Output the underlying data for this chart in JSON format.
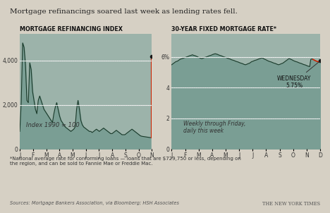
{
  "title": "Mortgage refinancings soared last week as lending rates fell.",
  "bg_color": "#d6d0c4",
  "chart_bg": "#9cb3aa",
  "left_title": "MORTGAGE REFINANCING INDEX",
  "right_title": "30-YEAR FIXED MORTGAGE RATE*",
  "left_label": "Index 1990 = 100",
  "right_annotation": "WEDNESDAY\n5.75%",
  "right_note": "Weekly through Friday,\ndaily this week",
  "footnote": "*National average rate for conforming loans — loans that are $729,750 or less, depending on\nthe region, and can be sold to Fannie Mae or Freddie Mac.",
  "sources": "Sources: Mortgage Bankers Association, via Bloomberg; HSH Associates",
  "nyt": "THE NEW YORK TIMES",
  "left_yticks": [
    0,
    2000,
    4000
  ],
  "left_ylim": [
    0,
    5200
  ],
  "right_yticks": [
    0,
    2,
    4,
    "6%"
  ],
  "right_ylim": [
    0,
    7.5
  ],
  "x_months_left": [
    "J",
    "F",
    "M",
    "A",
    "M",
    "J",
    "J",
    "A",
    "S",
    "O",
    "N"
  ],
  "x_months_right": [
    "J",
    "F",
    "M",
    "A",
    "M",
    "J",
    "J",
    "A",
    "S",
    "O",
    "N",
    "D"
  ],
  "line_color": "#1a3a2a",
  "fill_color": "#7a9e94",
  "red_color": "#cc2200",
  "grid_color": "#ffffff",
  "dot_color": "#1a1a1a",
  "left_data": [
    800,
    2100,
    4800,
    4600,
    3800,
    2200,
    2100,
    3900,
    3600,
    2600,
    2200,
    1800,
    1600,
    2200,
    2400,
    2200,
    2000,
    1800,
    1700,
    1600,
    1500,
    1400,
    1300,
    1200,
    1600,
    1900,
    2100,
    1800,
    1500,
    1300,
    1200,
    1100,
    1000,
    950,
    900,
    850,
    800,
    850,
    900,
    1000,
    1800,
    2200,
    1800,
    1300,
    1100,
    1000,
    950,
    900,
    850,
    800,
    800,
    750,
    800,
    850,
    900,
    850,
    800,
    850,
    900,
    950,
    900,
    850,
    800,
    750,
    700,
    700,
    750,
    800,
    850,
    800,
    750,
    700,
    650,
    650,
    650,
    700,
    750,
    800,
    850,
    900,
    850,
    800,
    750,
    700,
    650,
    600,
    580,
    570,
    560,
    550,
    540,
    530,
    520,
    4200
  ],
  "right_data": [
    5.5,
    5.55,
    5.6,
    5.65,
    5.7,
    5.72,
    5.75,
    5.8,
    5.85,
    5.88,
    5.9,
    5.92,
    5.95,
    5.97,
    6.0,
    6.02,
    6.05,
    6.08,
    6.1,
    6.12,
    6.15,
    6.12,
    6.1,
    6.08,
    6.05,
    6.02,
    5.98,
    5.95,
    5.92,
    5.9,
    5.92,
    5.95,
    5.98,
    6.0,
    6.02,
    6.05,
    6.08,
    6.1,
    6.12,
    6.15,
    6.18,
    6.2,
    6.22,
    6.2,
    6.18,
    6.15,
    6.12,
    6.1,
    6.08,
    6.05,
    6.02,
    6.0,
    5.98,
    5.95,
    5.92,
    5.9,
    5.88,
    5.85,
    5.82,
    5.8,
    5.78,
    5.75,
    5.72,
    5.7,
    5.68,
    5.65,
    5.62,
    5.6,
    5.58,
    5.55,
    5.52,
    5.5,
    5.52,
    5.55,
    5.58,
    5.6,
    5.65,
    5.7,
    5.72,
    5.75,
    5.78,
    5.8,
    5.82,
    5.85,
    5.88,
    5.9,
    5.92,
    5.95,
    5.92,
    5.88,
    5.85,
    5.82,
    5.78,
    5.75,
    5.72,
    5.7,
    5.68,
    5.65,
    5.62,
    5.6,
    5.58,
    5.55,
    5.52,
    5.5,
    5.52,
    5.55,
    5.58,
    5.6,
    5.65,
    5.7,
    5.75,
    5.8,
    5.85,
    5.9,
    5.88,
    5.85,
    5.82,
    5.78,
    5.75,
    5.72,
    5.7,
    5.68,
    5.65,
    5.62,
    5.6,
    5.58,
    5.55,
    5.52,
    5.5,
    5.48,
    5.45,
    5.42,
    5.4,
    5.38,
    5.85,
    5.88,
    5.85,
    5.82,
    5.78,
    5.75,
    5.72,
    5.7,
    5.68,
    5.75
  ]
}
